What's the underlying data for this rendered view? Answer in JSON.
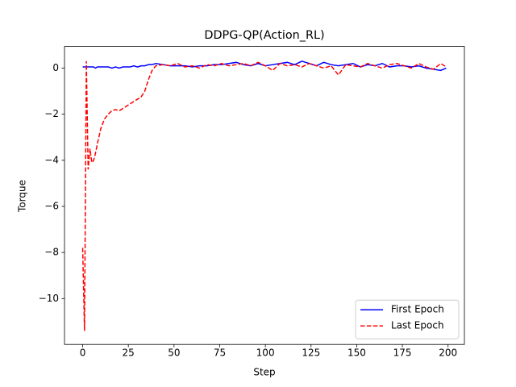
{
  "chart_data": {
    "type": "line",
    "title": "DDPG-QP(Action_RL)",
    "xlabel": "Step",
    "ylabel": "Torque",
    "x": [
      0,
      1,
      2,
      3,
      4,
      5,
      6,
      7,
      8,
      10,
      12,
      14,
      16,
      18,
      20,
      22,
      24,
      26,
      28,
      30,
      32,
      34,
      36,
      38,
      40,
      44,
      48,
      52,
      56,
      60,
      64,
      68,
      72,
      76,
      80,
      84,
      88,
      92,
      96,
      100,
      104,
      108,
      112,
      116,
      120,
      124,
      128,
      132,
      136,
      140,
      144,
      148,
      152,
      156,
      160,
      164,
      168,
      172,
      176,
      180,
      184,
      188,
      192,
      196,
      199
    ],
    "series": [
      {
        "name": "First Epoch",
        "color": "#0000ff",
        "linestyle": "solid",
        "values": [
          0.05,
          0.05,
          0.05,
          0.05,
          0.05,
          0.05,
          0.05,
          0.0,
          0.05,
          0.05,
          0.05,
          0.05,
          0.0,
          0.05,
          0.0,
          0.05,
          0.05,
          0.05,
          0.1,
          0.05,
          0.1,
          0.1,
          0.15,
          0.15,
          0.2,
          0.15,
          0.1,
          0.1,
          0.1,
          0.05,
          0.1,
          0.1,
          0.15,
          0.15,
          0.2,
          0.25,
          0.15,
          0.1,
          0.2,
          0.1,
          0.15,
          0.2,
          0.25,
          0.15,
          0.3,
          0.2,
          0.1,
          0.25,
          0.15,
          0.1,
          0.15,
          0.2,
          0.05,
          0.15,
          0.1,
          0.2,
          0.05,
          0.1,
          0.1,
          0.05,
          0.1,
          0.0,
          -0.05,
          -0.1,
          0.0
        ]
      },
      {
        "name": "Last Epoch",
        "color": "#ff0000",
        "linestyle": "dashed",
        "values": [
          -7.8,
          -11.4,
          0.3,
          -4.4,
          -3.5,
          -4.1,
          -4.0,
          -3.7,
          -3.3,
          -2.6,
          -2.2,
          -2.0,
          -1.85,
          -1.8,
          -1.85,
          -1.75,
          -1.65,
          -1.55,
          -1.45,
          -1.35,
          -1.25,
          -1.0,
          -0.5,
          -0.1,
          0.1,
          0.15,
          0.1,
          0.2,
          0.05,
          0.1,
          0.0,
          0.15,
          0.1,
          0.2,
          0.1,
          0.15,
          0.2,
          0.1,
          0.25,
          0.1,
          -0.1,
          0.2,
          0.1,
          0.15,
          0.05,
          0.2,
          0.1,
          0.0,
          0.1,
          -0.3,
          0.15,
          0.1,
          0.05,
          0.2,
          0.1,
          0.0,
          0.15,
          0.2,
          0.1,
          0.0,
          0.2,
          0.05,
          -0.05,
          0.2,
          0.05
        ]
      }
    ],
    "xlim": [
      -9.95,
      208.95
    ],
    "ylim": [
      -11.99,
      0.94
    ],
    "xticks": [
      0,
      25,
      50,
      75,
      100,
      125,
      150,
      175,
      200
    ],
    "yticks": [
      {
        "value": -10,
        "label": "−10"
      },
      {
        "value": -8,
        "label": "−8"
      },
      {
        "value": -6,
        "label": "−6"
      },
      {
        "value": -4,
        "label": "−4"
      },
      {
        "value": -2,
        "label": "−2"
      },
      0
    ],
    "legend": "lower right"
  }
}
